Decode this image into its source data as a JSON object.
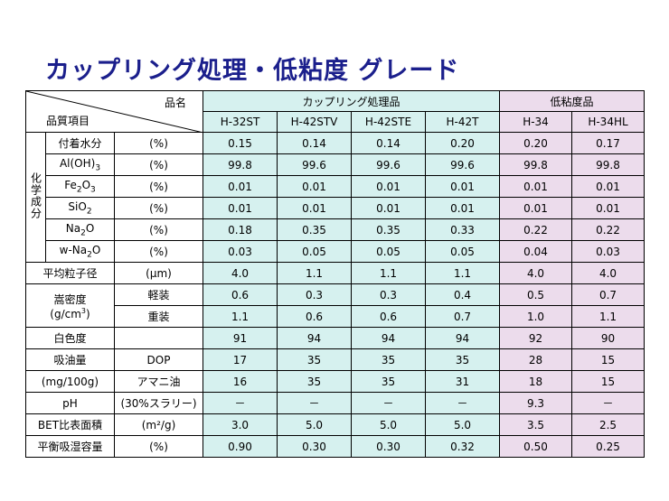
{
  "title": "カップリング処理・低粘度 グレード",
  "header": {
    "hinmei": "品名",
    "hinshitsu": "品質項目",
    "group_coupling": "カップリング処理品",
    "group_lowvisc": "低粘度品",
    "grades": [
      "H-32ST",
      "H-42STV",
      "H-42STE",
      "H-42T",
      "H-34",
      "H-34HL"
    ]
  },
  "chem_group": "化学成分",
  "chem_rows": [
    {
      "name": "付着水分",
      "unit": "(%)",
      "v": [
        "0.15",
        "0.14",
        "0.14",
        "0.20",
        "0.20",
        "0.17"
      ]
    },
    {
      "name": "Al(OH)",
      "sub": "3",
      "unit": "(%)",
      "v": [
        "99.8",
        "99.6",
        "99.6",
        "99.6",
        "99.8",
        "99.8"
      ]
    },
    {
      "name": "Fe",
      "sub": "2",
      "name2": "O",
      "sub2": "3",
      "unit": "(%)",
      "v": [
        "0.01",
        "0.01",
        "0.01",
        "0.01",
        "0.01",
        "0.01"
      ]
    },
    {
      "name": "SiO",
      "sub": "2",
      "unit": "(%)",
      "v": [
        "0.01",
        "0.01",
        "0.01",
        "0.01",
        "0.01",
        "0.01"
      ]
    },
    {
      "name": "Na",
      "sub": "2",
      "name2": "O",
      "unit": "(%)",
      "v": [
        "0.18",
        "0.35",
        "0.35",
        "0.33",
        "0.22",
        "0.22"
      ]
    },
    {
      "name": "w-Na",
      "sub": "2",
      "name2": "O",
      "unit": "(%)",
      "v": [
        "0.03",
        "0.05",
        "0.05",
        "0.05",
        "0.04",
        "0.03"
      ]
    }
  ],
  "particle": {
    "name": "平均粒子径",
    "unit": "(μm)",
    "v": [
      "4.0",
      "1.1",
      "1.1",
      "1.1",
      "4.0",
      "4.0"
    ]
  },
  "density": {
    "name": "嵩密度",
    "unit": "(g/cm",
    "unit_sup": "3",
    "unit_close": ")",
    "light": {
      "name": "軽装",
      "v": [
        "0.6",
        "0.3",
        "0.3",
        "0.4",
        "0.5",
        "0.7"
      ]
    },
    "heavy": {
      "name": "重装",
      "v": [
        "1.1",
        "0.6",
        "0.6",
        "0.7",
        "1.0",
        "1.1"
      ]
    }
  },
  "whiteness": {
    "name": "白色度",
    "v": [
      "91",
      "94",
      "94",
      "94",
      "92",
      "90"
    ]
  },
  "oil": {
    "name": "吸油量",
    "unit": "(mg/100g)",
    "dop": {
      "name": "DOP",
      "v": [
        "17",
        "35",
        "35",
        "35",
        "28",
        "15"
      ]
    },
    "amani": {
      "name": "アマニ油",
      "v": [
        "16",
        "35",
        "35",
        "31",
        "18",
        "15"
      ]
    }
  },
  "ph": {
    "name": "pH",
    "unit": "(30%スラリー)",
    "v": [
      "－",
      "－",
      "－",
      "－",
      "9.3",
      "－"
    ]
  },
  "bet": {
    "name": "BET比表面積",
    "unit": "(m²/g)",
    "v": [
      "3.0",
      "5.0",
      "5.0",
      "5.0",
      "3.5",
      "2.5"
    ]
  },
  "moisture": {
    "name": "平衡吸湿容量",
    "unit": "(%)",
    "v": [
      "0.90",
      "0.30",
      "0.30",
      "0.32",
      "0.50",
      "0.25"
    ]
  }
}
